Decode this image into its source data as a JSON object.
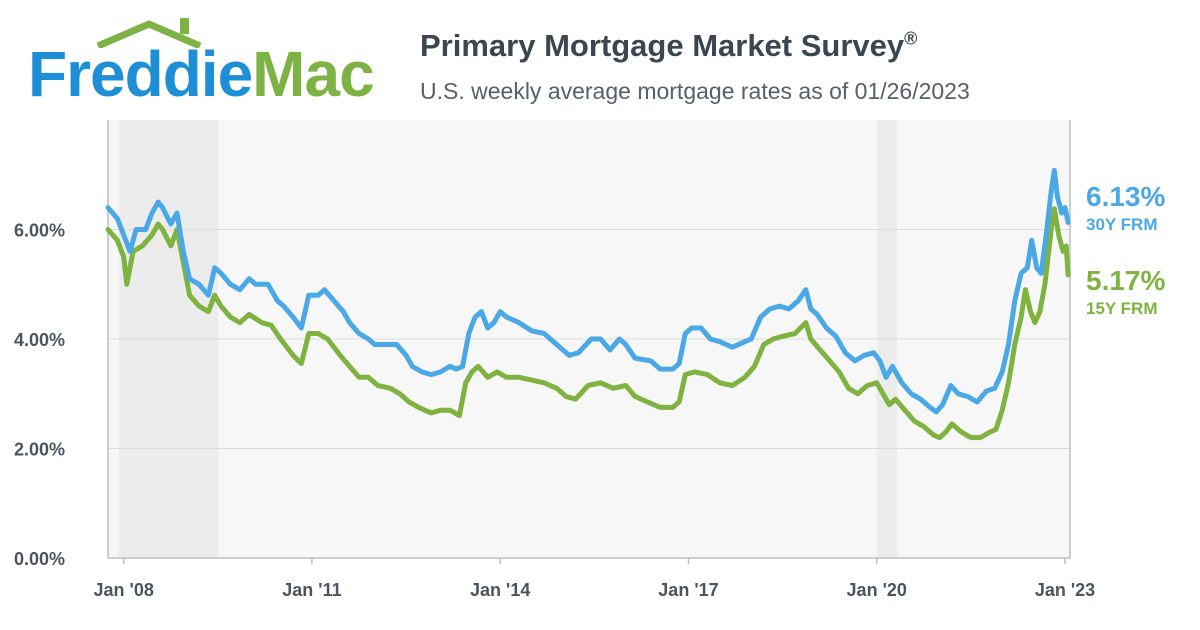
{
  "header": {
    "logo_text_part1": "Freddie",
    "logo_text_part2": "Mac",
    "title": "Primary Mortgage Market Survey",
    "title_mark": "®",
    "subtitle": "U.S. weekly average mortgage rates as of 01/26/2023"
  },
  "colors": {
    "series_30y": "#4ba8e6",
    "series_15y": "#7fb33f",
    "logo_blue": "#1e8fd6",
    "logo_green": "#7db344",
    "plot_bg": "#f7f7f7",
    "recession_band": "#ececec",
    "grid": "#dcdcdc"
  },
  "end_labels": [
    {
      "value": "6.13%",
      "label": "30Y FRM"
    },
    {
      "value": "5.17%",
      "label": "15Y FRM"
    }
  ],
  "chart_data": {
    "type": "line",
    "title": "Primary Mortgage Market Survey",
    "subtitle": "U.S. weekly average mortgage rates as of 01/26/2023",
    "xlabel": "",
    "ylabel": "",
    "x_range": [
      2007.75,
      2023.08
    ],
    "y_range": [
      0,
      8
    ],
    "yticks": [
      0,
      2,
      4,
      6
    ],
    "ytick_labels": [
      "0.00%",
      "2.00%",
      "4.00%",
      "6.00%"
    ],
    "xticks": [
      2008,
      2011,
      2014,
      2017,
      2020,
      2023
    ],
    "xtick_labels": [
      "Jan '08",
      "Jan '11",
      "Jan '14",
      "Jan '17",
      "Jan '20",
      "Jan '23"
    ],
    "shaded_periods": [
      [
        2007.92,
        2009.5
      ],
      [
        2020.0,
        2020.33
      ]
    ],
    "grid": true,
    "series": [
      {
        "name": "30Y FRM",
        "last_value": 6.13,
        "points": [
          [
            2007.75,
            6.4
          ],
          [
            2007.9,
            6.2
          ],
          [
            2008.0,
            5.9
          ],
          [
            2008.1,
            5.6
          ],
          [
            2008.2,
            6.0
          ],
          [
            2008.35,
            6.0
          ],
          [
            2008.45,
            6.3
          ],
          [
            2008.55,
            6.5
          ],
          [
            2008.62,
            6.4
          ],
          [
            2008.75,
            6.1
          ],
          [
            2008.85,
            6.3
          ],
          [
            2008.95,
            5.6
          ],
          [
            2009.05,
            5.1
          ],
          [
            2009.2,
            5.0
          ],
          [
            2009.35,
            4.8
          ],
          [
            2009.45,
            5.3
          ],
          [
            2009.55,
            5.2
          ],
          [
            2009.7,
            5.0
          ],
          [
            2009.85,
            4.9
          ],
          [
            2010.0,
            5.1
          ],
          [
            2010.1,
            5.0
          ],
          [
            2010.3,
            5.0
          ],
          [
            2010.45,
            4.7
          ],
          [
            2010.55,
            4.6
          ],
          [
            2010.7,
            4.4
          ],
          [
            2010.83,
            4.2
          ],
          [
            2010.95,
            4.8
          ],
          [
            2011.1,
            4.8
          ],
          [
            2011.2,
            4.9
          ],
          [
            2011.35,
            4.7
          ],
          [
            2011.5,
            4.5
          ],
          [
            2011.6,
            4.3
          ],
          [
            2011.75,
            4.1
          ],
          [
            2011.9,
            4.0
          ],
          [
            2012.0,
            3.9
          ],
          [
            2012.2,
            3.9
          ],
          [
            2012.35,
            3.9
          ],
          [
            2012.5,
            3.7
          ],
          [
            2012.6,
            3.5
          ],
          [
            2012.75,
            3.4
          ],
          [
            2012.9,
            3.35
          ],
          [
            2013.05,
            3.4
          ],
          [
            2013.2,
            3.5
          ],
          [
            2013.3,
            3.45
          ],
          [
            2013.4,
            3.5
          ],
          [
            2013.5,
            4.1
          ],
          [
            2013.6,
            4.4
          ],
          [
            2013.7,
            4.5
          ],
          [
            2013.8,
            4.2
          ],
          [
            2013.9,
            4.3
          ],
          [
            2014.0,
            4.5
          ],
          [
            2014.1,
            4.4
          ],
          [
            2014.3,
            4.3
          ],
          [
            2014.5,
            4.15
          ],
          [
            2014.7,
            4.1
          ],
          [
            2014.9,
            3.9
          ],
          [
            2015.0,
            3.8
          ],
          [
            2015.1,
            3.7
          ],
          [
            2015.25,
            3.75
          ],
          [
            2015.45,
            4.0
          ],
          [
            2015.6,
            4.0
          ],
          [
            2015.75,
            3.8
          ],
          [
            2015.9,
            4.0
          ],
          [
            2016.0,
            3.9
          ],
          [
            2016.15,
            3.65
          ],
          [
            2016.4,
            3.6
          ],
          [
            2016.55,
            3.45
          ],
          [
            2016.75,
            3.45
          ],
          [
            2016.85,
            3.55
          ],
          [
            2016.95,
            4.1
          ],
          [
            2017.05,
            4.2
          ],
          [
            2017.2,
            4.2
          ],
          [
            2017.35,
            4.0
          ],
          [
            2017.5,
            3.95
          ],
          [
            2017.7,
            3.85
          ],
          [
            2017.9,
            3.95
          ],
          [
            2018.0,
            4.0
          ],
          [
            2018.15,
            4.4
          ],
          [
            2018.3,
            4.55
          ],
          [
            2018.45,
            4.6
          ],
          [
            2018.6,
            4.55
          ],
          [
            2018.75,
            4.7
          ],
          [
            2018.87,
            4.9
          ],
          [
            2018.95,
            4.55
          ],
          [
            2019.05,
            4.45
          ],
          [
            2019.2,
            4.2
          ],
          [
            2019.35,
            4.05
          ],
          [
            2019.5,
            3.75
          ],
          [
            2019.65,
            3.6
          ],
          [
            2019.8,
            3.7
          ],
          [
            2019.95,
            3.75
          ],
          [
            2020.05,
            3.6
          ],
          [
            2020.15,
            3.3
          ],
          [
            2020.25,
            3.5
          ],
          [
            2020.4,
            3.2
          ],
          [
            2020.55,
            3.0
          ],
          [
            2020.7,
            2.9
          ],
          [
            2020.85,
            2.75
          ],
          [
            2020.95,
            2.67
          ],
          [
            2021.05,
            2.8
          ],
          [
            2021.18,
            3.15
          ],
          [
            2021.3,
            3.0
          ],
          [
            2021.45,
            2.95
          ],
          [
            2021.6,
            2.85
          ],
          [
            2021.75,
            3.05
          ],
          [
            2021.88,
            3.1
          ],
          [
            2022.0,
            3.4
          ],
          [
            2022.1,
            3.9
          ],
          [
            2022.2,
            4.7
          ],
          [
            2022.3,
            5.2
          ],
          [
            2022.4,
            5.3
          ],
          [
            2022.47,
            5.8
          ],
          [
            2022.55,
            5.3
          ],
          [
            2022.62,
            5.2
          ],
          [
            2022.7,
            5.9
          ],
          [
            2022.78,
            6.7
          ],
          [
            2022.83,
            7.08
          ],
          [
            2022.88,
            6.6
          ],
          [
            2022.95,
            6.3
          ],
          [
            2023.0,
            6.4
          ],
          [
            2023.05,
            6.13
          ]
        ]
      },
      {
        "name": "15Y FRM",
        "last_value": 5.17,
        "points": [
          [
            2007.75,
            6.0
          ],
          [
            2007.9,
            5.8
          ],
          [
            2008.0,
            5.5
          ],
          [
            2008.05,
            5.0
          ],
          [
            2008.15,
            5.6
          ],
          [
            2008.3,
            5.7
          ],
          [
            2008.45,
            5.9
          ],
          [
            2008.55,
            6.1
          ],
          [
            2008.62,
            6.0
          ],
          [
            2008.75,
            5.7
          ],
          [
            2008.85,
            6.0
          ],
          [
            2008.95,
            5.4
          ],
          [
            2009.05,
            4.8
          ],
          [
            2009.2,
            4.6
          ],
          [
            2009.35,
            4.5
          ],
          [
            2009.45,
            4.8
          ],
          [
            2009.55,
            4.6
          ],
          [
            2009.7,
            4.4
          ],
          [
            2009.85,
            4.3
          ],
          [
            2010.0,
            4.45
          ],
          [
            2010.2,
            4.3
          ],
          [
            2010.35,
            4.25
          ],
          [
            2010.5,
            4.0
          ],
          [
            2010.7,
            3.7
          ],
          [
            2010.83,
            3.55
          ],
          [
            2010.95,
            4.1
          ],
          [
            2011.1,
            4.1
          ],
          [
            2011.25,
            4.0
          ],
          [
            2011.45,
            3.7
          ],
          [
            2011.6,
            3.5
          ],
          [
            2011.75,
            3.3
          ],
          [
            2011.9,
            3.3
          ],
          [
            2012.05,
            3.15
          ],
          [
            2012.25,
            3.1
          ],
          [
            2012.4,
            3.0
          ],
          [
            2012.55,
            2.85
          ],
          [
            2012.7,
            2.75
          ],
          [
            2012.9,
            2.65
          ],
          [
            2013.05,
            2.7
          ],
          [
            2013.2,
            2.7
          ],
          [
            2013.35,
            2.6
          ],
          [
            2013.45,
            3.2
          ],
          [
            2013.55,
            3.4
          ],
          [
            2013.65,
            3.5
          ],
          [
            2013.8,
            3.3
          ],
          [
            2013.95,
            3.4
          ],
          [
            2014.1,
            3.3
          ],
          [
            2014.3,
            3.3
          ],
          [
            2014.5,
            3.25
          ],
          [
            2014.7,
            3.2
          ],
          [
            2014.9,
            3.1
          ],
          [
            2015.05,
            2.95
          ],
          [
            2015.2,
            2.9
          ],
          [
            2015.4,
            3.15
          ],
          [
            2015.6,
            3.2
          ],
          [
            2015.8,
            3.1
          ],
          [
            2016.0,
            3.15
          ],
          [
            2016.15,
            2.95
          ],
          [
            2016.35,
            2.85
          ],
          [
            2016.55,
            2.75
          ],
          [
            2016.75,
            2.75
          ],
          [
            2016.85,
            2.85
          ],
          [
            2016.95,
            3.35
          ],
          [
            2017.1,
            3.4
          ],
          [
            2017.3,
            3.35
          ],
          [
            2017.5,
            3.2
          ],
          [
            2017.7,
            3.15
          ],
          [
            2017.9,
            3.3
          ],
          [
            2018.05,
            3.5
          ],
          [
            2018.2,
            3.9
          ],
          [
            2018.35,
            4.0
          ],
          [
            2018.5,
            4.05
          ],
          [
            2018.7,
            4.1
          ],
          [
            2018.87,
            4.3
          ],
          [
            2018.95,
            4.0
          ],
          [
            2019.1,
            3.8
          ],
          [
            2019.25,
            3.6
          ],
          [
            2019.4,
            3.4
          ],
          [
            2019.55,
            3.1
          ],
          [
            2019.7,
            3.0
          ],
          [
            2019.85,
            3.15
          ],
          [
            2020.0,
            3.2
          ],
          [
            2020.1,
            3.0
          ],
          [
            2020.2,
            2.8
          ],
          [
            2020.3,
            2.9
          ],
          [
            2020.45,
            2.7
          ],
          [
            2020.6,
            2.5
          ],
          [
            2020.75,
            2.4
          ],
          [
            2020.9,
            2.25
          ],
          [
            2021.0,
            2.2
          ],
          [
            2021.1,
            2.3
          ],
          [
            2021.2,
            2.45
          ],
          [
            2021.35,
            2.3
          ],
          [
            2021.5,
            2.2
          ],
          [
            2021.65,
            2.2
          ],
          [
            2021.8,
            2.3
          ],
          [
            2021.9,
            2.35
          ],
          [
            2022.0,
            2.7
          ],
          [
            2022.1,
            3.2
          ],
          [
            2022.2,
            3.9
          ],
          [
            2022.3,
            4.4
          ],
          [
            2022.37,
            4.9
          ],
          [
            2022.45,
            4.5
          ],
          [
            2022.52,
            4.3
          ],
          [
            2022.6,
            4.5
          ],
          [
            2022.68,
            5.0
          ],
          [
            2022.78,
            6.0
          ],
          [
            2022.83,
            6.38
          ],
          [
            2022.9,
            5.9
          ],
          [
            2022.97,
            5.6
          ],
          [
            2023.02,
            5.7
          ],
          [
            2023.05,
            5.17
          ]
        ]
      }
    ]
  }
}
